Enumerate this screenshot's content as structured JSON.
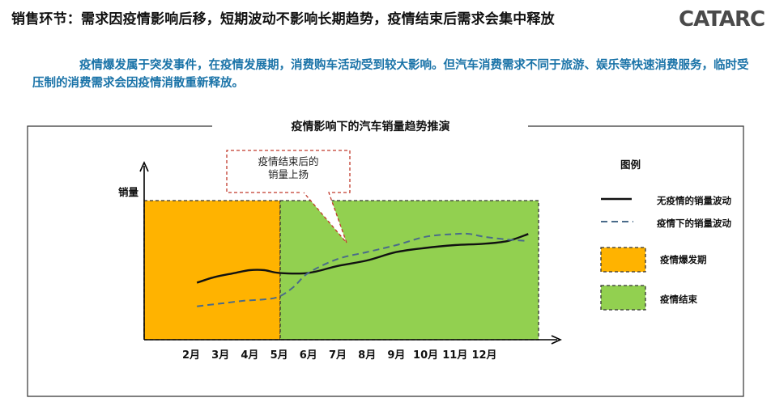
{
  "header": {
    "title": "销售环节：需求因疫情影响后移，短期波动不影响长期趋势，疫情结束后需求会集中释放",
    "logo_text": "CATARC"
  },
  "intro": {
    "text": "疫情爆发属于突发事件，在疫情发展期，消费购车活动受到较大影响。但汽车消费需求不同于旅游、娱乐等快速消费服务，临时受压制的消费需求会因疫情消散重新释放。"
  },
  "colors": {
    "text_accent": "#1a73a8",
    "outbreak_fill": "#ffb300",
    "ended_fill": "#92d050",
    "callout_border": "#c0392b",
    "line": "#111111",
    "dashed_line": "#4a6b8a"
  },
  "chart_data": {
    "type": "line",
    "title": "疫情影响下的汽车销量趋势推演",
    "ylabel": "销量",
    "xlabel": "",
    "categories": [
      "2月",
      "3月",
      "4月",
      "5月",
      "6月",
      "7月",
      "8月",
      "9月",
      "10月",
      "11月",
      "12月"
    ],
    "ylim": [
      0,
      100
    ],
    "series": [
      {
        "name": "无疫情的销量波动",
        "style": "solid",
        "x": [
          1.2,
          1.8,
          2.5,
          3.0,
          3.5,
          4.0,
          5.0,
          6.0,
          7.0,
          8.0,
          9.0,
          10.0,
          11.0,
          11.8,
          12.5
        ],
        "y": [
          41,
          45,
          48,
          50,
          50,
          48,
          48,
          53,
          57,
          63,
          66,
          68,
          69,
          71,
          76
        ]
      },
      {
        "name": "疫情下的销量波动",
        "style": "dashed",
        "x": [
          1.2,
          2.0,
          2.8,
          3.5,
          4.0,
          4.5,
          5.0,
          6.0,
          7.0,
          8.0,
          9.0,
          10.0,
          10.5,
          11.0,
          11.8,
          12.5
        ],
        "y": [
          24,
          26,
          28,
          29,
          31,
          38,
          48,
          58,
          63,
          68,
          74,
          76,
          76,
          74,
          72,
          71
        ]
      }
    ],
    "regions": [
      {
        "name": "疫情爆发期",
        "x_start": 1,
        "x_end": 5,
        "color": "#ffb300"
      },
      {
        "name": "疫情结束",
        "x_start": 5,
        "x_end": 13,
        "color": "#92d050"
      }
    ],
    "annotation": {
      "lines": [
        "疫情结束后的",
        "销量上扬"
      ],
      "target_x": 6.3
    },
    "legend": {
      "title": "图例",
      "position": "right",
      "items": [
        {
          "label": "无疫情的销量波动",
          "kind": "solid-line"
        },
        {
          "label": "疫情下的销量波动",
          "kind": "dashed-line"
        },
        {
          "label": "疫情爆发期",
          "kind": "orange-box"
        },
        {
          "label": "疫情结束",
          "kind": "green-box"
        }
      ]
    },
    "grid": false
  }
}
